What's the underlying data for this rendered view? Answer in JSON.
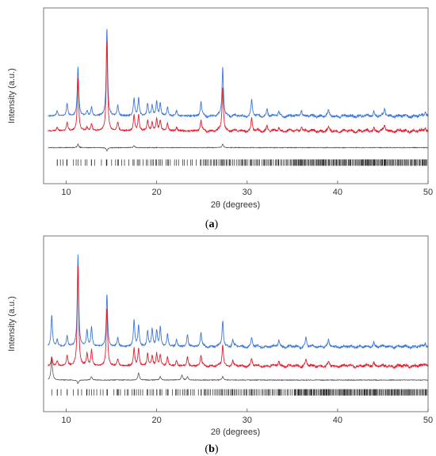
{
  "chart_data": [
    {
      "type": "line",
      "panel_label": "a",
      "xlabel": "2θ (degrees)",
      "ylabel": "Intensity (a.u.)",
      "xlim": [
        7.5,
        50
      ],
      "xticks": [
        10,
        20,
        30,
        40,
        50
      ],
      "grid": false,
      "legend": "none",
      "series": [
        {
          "role": "observed",
          "color": "#3c78d8",
          "baseline": 0.385,
          "peaks": [
            [
              9.0,
              0.03
            ],
            [
              10.1,
              0.07
            ],
            [
              11.3,
              0.28
            ],
            [
              12.3,
              0.03
            ],
            [
              12.8,
              0.05
            ],
            [
              14.5,
              0.5
            ],
            [
              15.7,
              0.06
            ],
            [
              17.5,
              0.1
            ],
            [
              18.0,
              0.1
            ],
            [
              19.0,
              0.07
            ],
            [
              19.5,
              0.06
            ],
            [
              20.0,
              0.08
            ],
            [
              20.4,
              0.07
            ],
            [
              21.2,
              0.05
            ],
            [
              22.2,
              0.03
            ],
            [
              24.9,
              0.08
            ],
            [
              27.3,
              0.28
            ],
            [
              30.5,
              0.09
            ],
            [
              32.2,
              0.04
            ],
            [
              33.5,
              0.03
            ],
            [
              36.0,
              0.04
            ],
            [
              39.0,
              0.03
            ],
            [
              44.0,
              0.03
            ],
            [
              45.2,
              0.04
            ],
            [
              49.7,
              0.03
            ]
          ]
        },
        {
          "role": "calculated",
          "color": "#e02030",
          "baseline": 0.3,
          "peaks": [
            [
              9.0,
              0.02
            ],
            [
              10.1,
              0.05
            ],
            [
              11.3,
              0.3
            ],
            [
              12.3,
              0.02
            ],
            [
              12.8,
              0.04
            ],
            [
              14.5,
              0.52
            ],
            [
              15.7,
              0.05
            ],
            [
              17.5,
              0.09
            ],
            [
              18.0,
              0.09
            ],
            [
              19.0,
              0.06
            ],
            [
              19.5,
              0.05
            ],
            [
              20.0,
              0.07
            ],
            [
              20.4,
              0.06
            ],
            [
              21.2,
              0.04
            ],
            [
              22.2,
              0.02
            ],
            [
              24.9,
              0.06
            ],
            [
              27.3,
              0.25
            ],
            [
              30.5,
              0.07
            ],
            [
              32.2,
              0.03
            ],
            [
              33.5,
              0.02
            ],
            [
              36.0,
              0.03
            ],
            [
              39.0,
              0.02
            ],
            [
              44.0,
              0.02
            ],
            [
              45.2,
              0.03
            ],
            [
              49.7,
              0.02
            ]
          ]
        },
        {
          "role": "difference",
          "color": "#444444",
          "baseline": 0.205,
          "peaks": [
            [
              11.3,
              0.02
            ],
            [
              14.5,
              -0.02
            ],
            [
              17.5,
              0.01
            ],
            [
              27.3,
              0.02
            ]
          ]
        }
      ],
      "reflection_markers_y": 0.12
    },
    {
      "type": "line",
      "panel_label": "b",
      "xlabel": "2θ (degrees)",
      "ylabel": "Intensity (a.u.)",
      "xlim": [
        7.5,
        50
      ],
      "xticks": [
        10,
        20,
        30,
        40,
        50
      ],
      "grid": false,
      "legend": "none",
      "series": [
        {
          "role": "observed",
          "color": "#3c78d8",
          "baseline": 0.37,
          "peaks": [
            [
              8.4,
              0.18
            ],
            [
              9.0,
              0.04
            ],
            [
              10.1,
              0.06
            ],
            [
              11.3,
              0.52
            ],
            [
              12.3,
              0.09
            ],
            [
              12.8,
              0.11
            ],
            [
              14.5,
              0.3
            ],
            [
              15.7,
              0.05
            ],
            [
              17.5,
              0.15
            ],
            [
              18.0,
              0.12
            ],
            [
              19.0,
              0.09
            ],
            [
              19.5,
              0.1
            ],
            [
              20.0,
              0.09
            ],
            [
              20.4,
              0.11
            ],
            [
              21.2,
              0.07
            ],
            [
              22.2,
              0.04
            ],
            [
              23.4,
              0.07
            ],
            [
              24.9,
              0.08
            ],
            [
              27.3,
              0.15
            ],
            [
              28.4,
              0.04
            ],
            [
              30.5,
              0.05
            ],
            [
              33.5,
              0.04
            ],
            [
              36.5,
              0.05
            ],
            [
              39.0,
              0.03
            ],
            [
              44.0,
              0.03
            ],
            [
              49.7,
              0.02
            ]
          ]
        },
        {
          "role": "calculated",
          "color": "#e02030",
          "baseline": 0.26,
          "peaks": [
            [
              8.4,
              0.05
            ],
            [
              9.0,
              0.03
            ],
            [
              10.1,
              0.06
            ],
            [
              11.3,
              0.57
            ],
            [
              12.3,
              0.07
            ],
            [
              12.8,
              0.09
            ],
            [
              14.5,
              0.33
            ],
            [
              15.7,
              0.04
            ],
            [
              17.5,
              0.1
            ],
            [
              18.0,
              0.1
            ],
            [
              19.0,
              0.07
            ],
            [
              19.5,
              0.06
            ],
            [
              20.0,
              0.07
            ],
            [
              20.4,
              0.06
            ],
            [
              21.2,
              0.05
            ],
            [
              22.2,
              0.03
            ],
            [
              23.4,
              0.05
            ],
            [
              24.9,
              0.06
            ],
            [
              27.3,
              0.12
            ],
            [
              28.4,
              0.03
            ],
            [
              30.5,
              0.04
            ],
            [
              33.5,
              0.03
            ],
            [
              36.5,
              0.04
            ],
            [
              39.0,
              0.02
            ],
            [
              44.0,
              0.02
            ],
            [
              49.7,
              0.02
            ]
          ]
        },
        {
          "role": "difference",
          "color": "#444444",
          "baseline": 0.18,
          "peaks": [
            [
              8.4,
              0.13
            ],
            [
              11.3,
              -0.02
            ],
            [
              12.8,
              0.02
            ],
            [
              18.0,
              0.04
            ],
            [
              20.4,
              0.02
            ],
            [
              22.8,
              0.03
            ],
            [
              23.4,
              0.02
            ],
            [
              27.3,
              0.02
            ]
          ]
        }
      ],
      "reflection_markers_y": 0.11
    }
  ]
}
